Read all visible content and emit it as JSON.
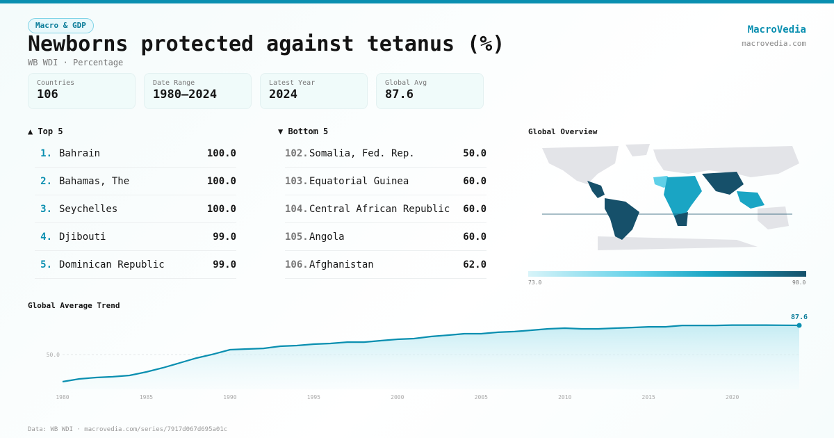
{
  "header": {
    "tag": "Macro & GDP",
    "title": "Newborns protected against tetanus (%)",
    "subtitle": "WB WDI · Percentage",
    "brand": "MacroVedia",
    "brand_url": "macrovedia.com"
  },
  "stats": [
    {
      "label": "Countries",
      "value": "106"
    },
    {
      "label": "Date Range",
      "value": "1980–2024"
    },
    {
      "label": "Latest Year",
      "value": "2024"
    },
    {
      "label": "Global Avg",
      "value": "87.6"
    }
  ],
  "top": {
    "title": "▲ Top 5",
    "items": [
      {
        "rank": "1.",
        "name": "Bahrain",
        "value": "100.0"
      },
      {
        "rank": "2.",
        "name": "Bahamas, The",
        "value": "100.0"
      },
      {
        "rank": "3.",
        "name": "Seychelles",
        "value": "100.0"
      },
      {
        "rank": "4.",
        "name": "Djibouti",
        "value": "99.0"
      },
      {
        "rank": "5.",
        "name": "Dominican Republic",
        "value": "99.0"
      }
    ]
  },
  "bottom": {
    "title": "▼ Bottom 5",
    "items": [
      {
        "rank": "102.",
        "name": "Somalia, Fed. Rep.",
        "value": "50.0"
      },
      {
        "rank": "103.",
        "name": "Equatorial Guinea",
        "value": "60.0"
      },
      {
        "rank": "104.",
        "name": "Central African Republic",
        "value": "60.0"
      },
      {
        "rank": "105.",
        "name": "Angola",
        "value": "60.0"
      },
      {
        "rank": "106.",
        "name": "Afghanistan",
        "value": "62.0"
      }
    ]
  },
  "map": {
    "title": "Global Overview",
    "scale_min": "73.0",
    "scale_max": "98.0",
    "colors": [
      "#d8f4f9",
      "#5fd0e8",
      "#1aa5c4",
      "#16506a"
    ]
  },
  "chart_data": {
    "type": "area",
    "title": "Global Average Trend",
    "x": [
      1980,
      1981,
      1982,
      1983,
      1984,
      1985,
      1986,
      1987,
      1988,
      1989,
      1990,
      1991,
      1992,
      1993,
      1994,
      1995,
      1996,
      1997,
      1998,
      1999,
      2000,
      2001,
      2002,
      2003,
      2004,
      2005,
      2006,
      2007,
      2008,
      2009,
      2010,
      2011,
      2012,
      2013,
      2014,
      2015,
      2016,
      2017,
      2018,
      2019,
      2020,
      2021,
      2022,
      2023,
      2024
    ],
    "values": [
      15.1,
      18.7,
      20.5,
      21.4,
      23.1,
      27.6,
      33,
      39.3,
      45.5,
      50.5,
      56.3,
      57.2,
      58,
      60.7,
      61.6,
      63.4,
      64.3,
      66,
      66,
      67.9,
      69.7,
      70.6,
      73.3,
      75,
      76.9,
      76.9,
      78.7,
      79.6,
      81.3,
      83.1,
      84,
      83.1,
      83.1,
      84,
      84.8,
      85.7,
      85.7,
      87.5,
      87.5,
      87.5,
      88,
      88,
      88,
      87.8,
      87.6
    ],
    "xticks": [
      "1980",
      "1985",
      "1990",
      "1995",
      "2000",
      "2005",
      "2010",
      "2015",
      "2020"
    ],
    "ytick": "50.0",
    "last_label": "87.6",
    "color": "#0a8fb0"
  },
  "footer": "Data: WB WDI · macrovedia.com/series/7917d067d695a01c"
}
